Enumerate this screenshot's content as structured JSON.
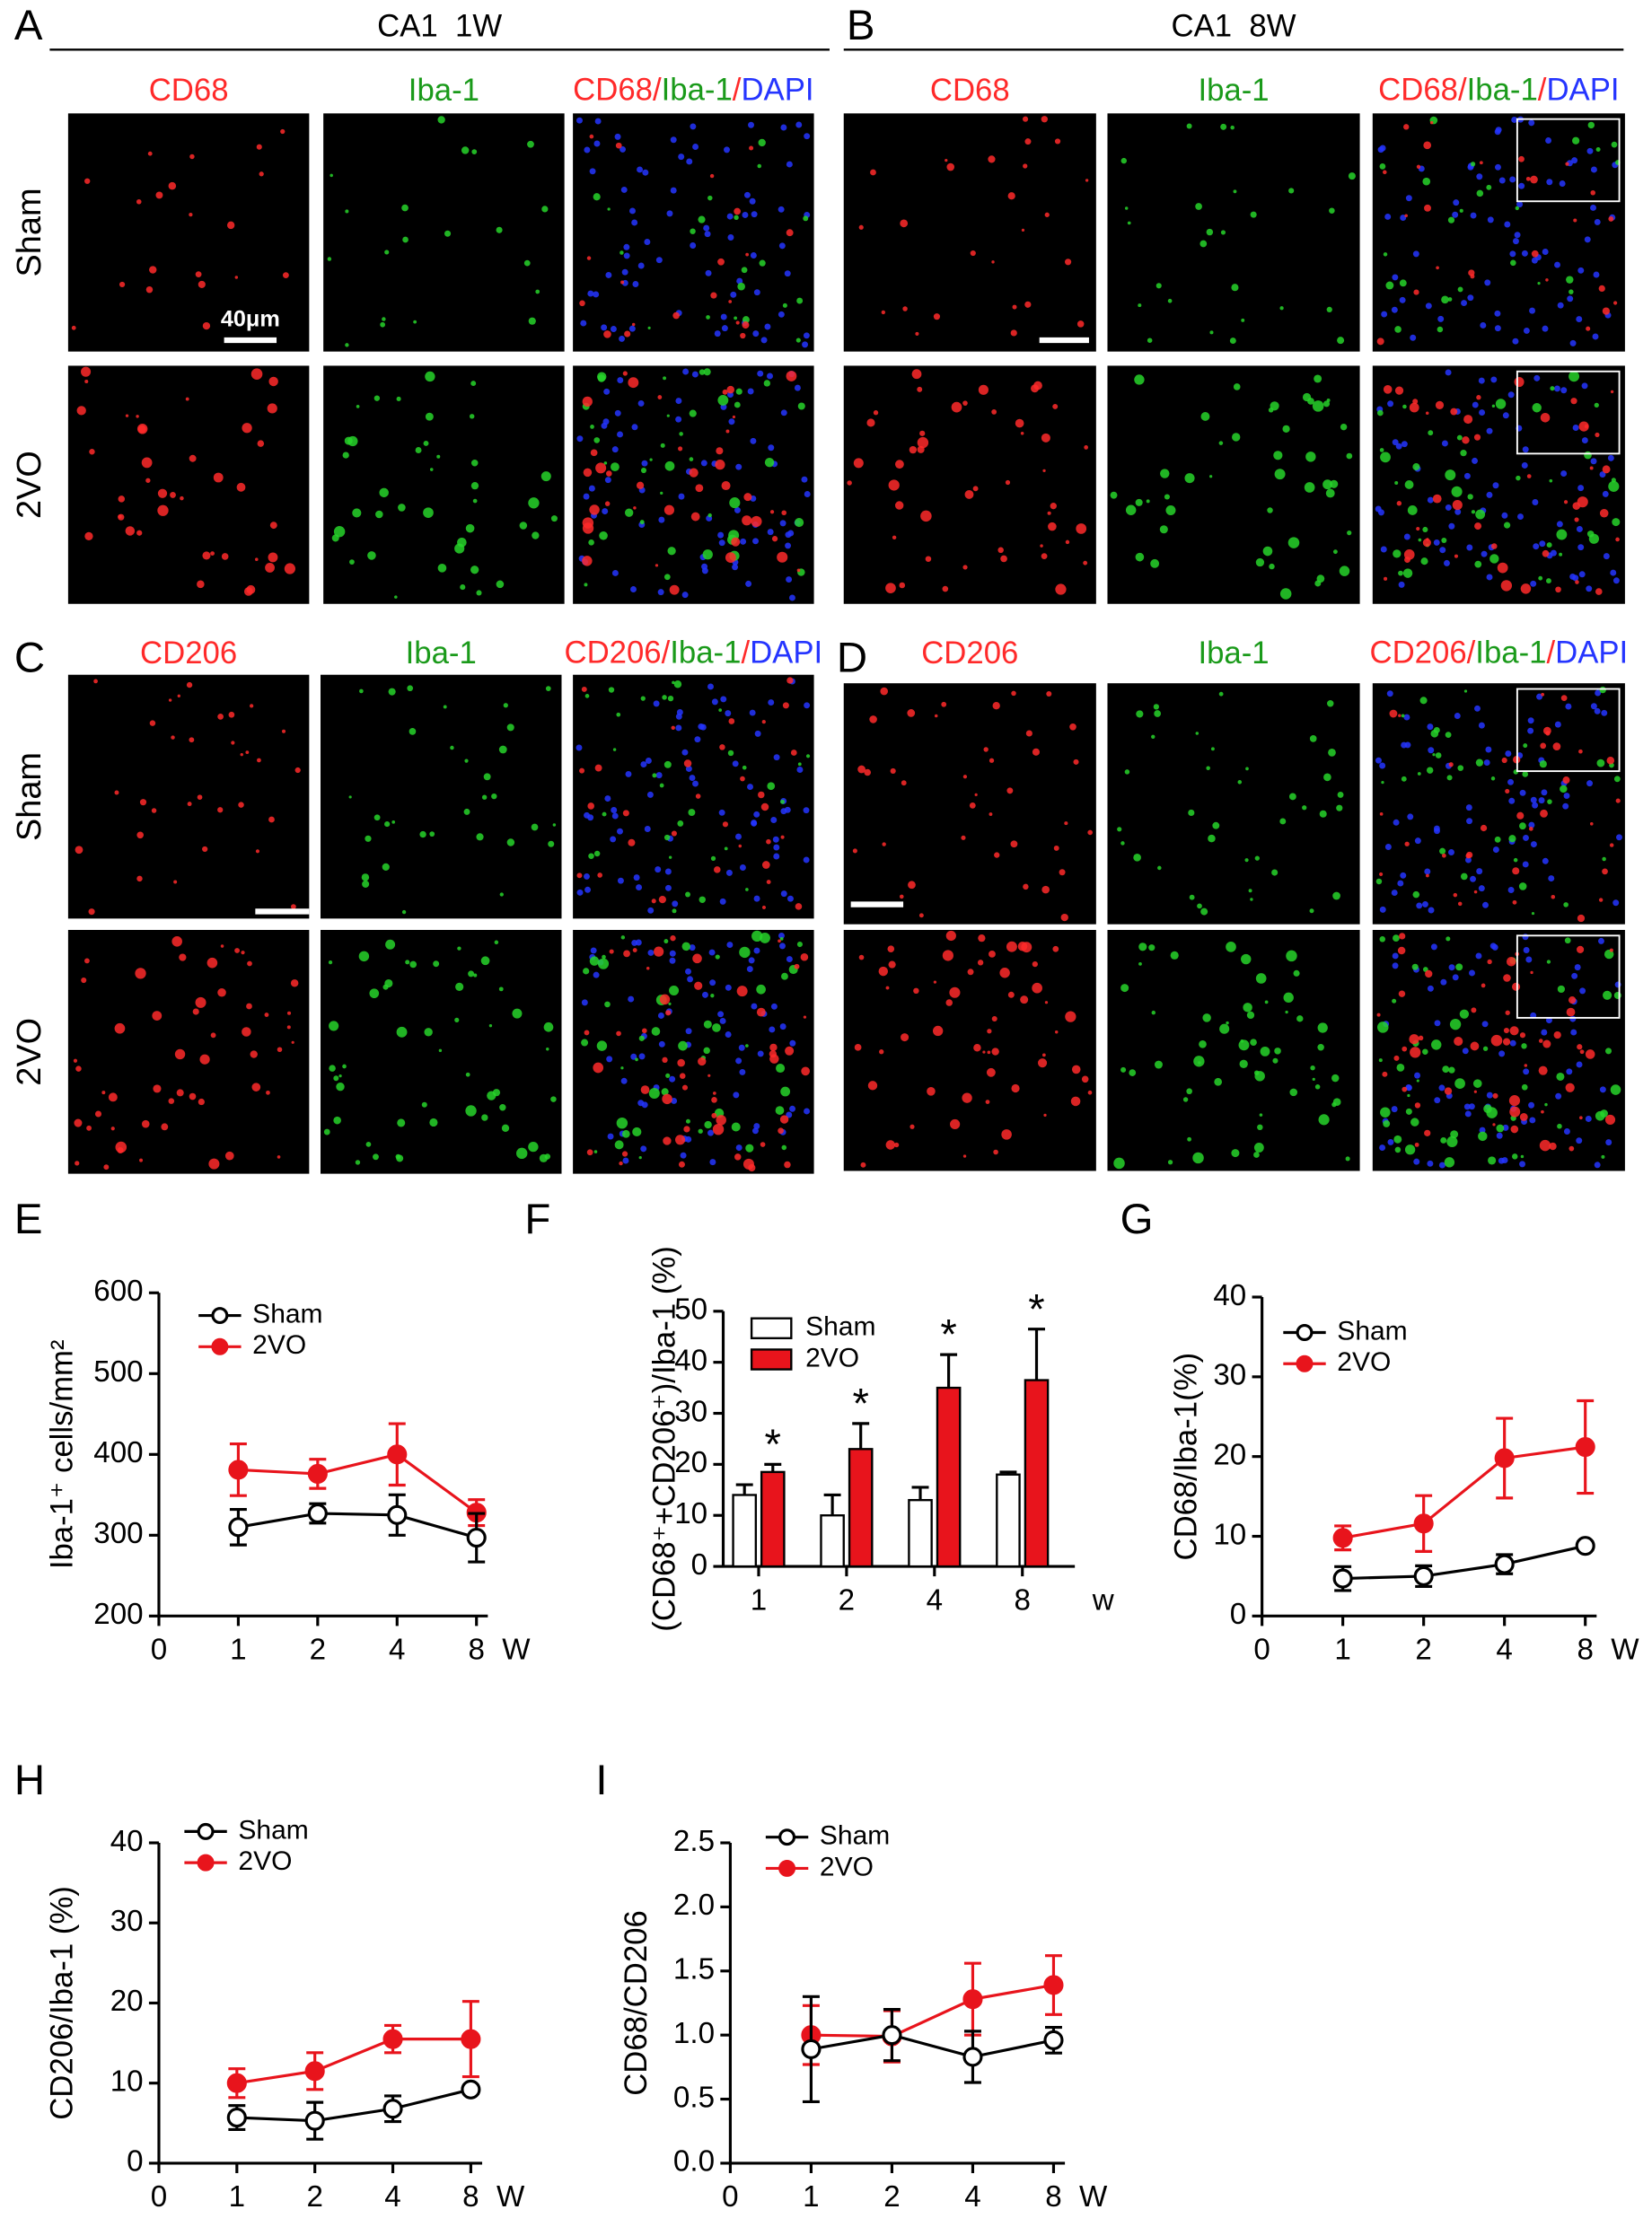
{
  "panels": [
    {
      "letter": "A",
      "header": "CA1  1W",
      "columns": [
        "CD68",
        "Iba-1"
      ],
      "merge": [
        "CD68/",
        "Iba-1",
        "/",
        "DAPI"
      ],
      "rows": [
        "Sham",
        "2VO"
      ],
      "scale_label": "40μm"
    },
    {
      "letter": "B",
      "header": "CA1  8W",
      "columns": [
        "CD68",
        "Iba-1"
      ],
      "merge": [
        "CD68/",
        "Iba-1",
        "/",
        "DAPI"
      ]
    },
    {
      "letter": "C",
      "columns": [
        "CD206",
        "Iba-1"
      ],
      "merge": [
        "CD206/",
        "Iba-1",
        "/",
        "DAPI"
      ],
      "rows": [
        "Sham",
        "2VO"
      ]
    },
    {
      "letter": "D",
      "columns": [
        "CD206",
        "Iba-1"
      ],
      "merge": [
        "CD206/",
        "Iba-1",
        "/",
        "DAPI"
      ]
    }
  ],
  "chart_data": [
    {
      "type": "line",
      "panel_label": "E",
      "y_label": "Iba-1⁺ cells/mm²",
      "x_label": "W",
      "categories": [
        "0",
        "1",
        "2",
        "4",
        "8"
      ],
      "ylim": [
        200,
        600
      ],
      "yticks": [
        200,
        300,
        400,
        500,
        600
      ],
      "series": [
        {
          "name": "Sham",
          "color": "#000000",
          "values": [
            null,
            310,
            327,
            325,
            297
          ],
          "errors": [
            null,
            22,
            12,
            25,
            30
          ]
        },
        {
          "name": "2VO",
          "color": "#e8141c",
          "values": [
            null,
            381,
            376,
            400,
            328
          ],
          "errors": [
            null,
            32,
            18,
            38,
            16
          ]
        }
      ]
    },
    {
      "type": "bar",
      "panel_label": "F",
      "y_label": "(CD68⁺+CD206⁺)/Iba-1 (%)",
      "x_label": "w",
      "categories": [
        "1",
        "2",
        "4",
        "8"
      ],
      "ylim": [
        0,
        50
      ],
      "yticks": [
        0,
        10,
        20,
        30,
        40,
        50
      ],
      "annotations": [
        "*",
        "*",
        "*",
        "*"
      ],
      "series": [
        {
          "name": "Sham",
          "color": "#ffffff",
          "values": [
            14,
            10,
            13,
            18
          ],
          "errors": [
            2,
            4,
            2.5,
            0.5
          ]
        },
        {
          "name": "2VO",
          "color": "#e8141c",
          "values": [
            18.5,
            23,
            35,
            36.5
          ],
          "errors": [
            1.5,
            5,
            6.5,
            10
          ]
        }
      ]
    },
    {
      "type": "line",
      "panel_label": "G",
      "y_label": "CD68/Iba-1(%)",
      "x_label": "W",
      "categories": [
        "0",
        "1",
        "2",
        "4",
        "8"
      ],
      "ylim": [
        0,
        40
      ],
      "yticks": [
        0,
        10,
        20,
        30,
        40
      ],
      "series": [
        {
          "name": "Sham",
          "color": "#000000",
          "values": [
            null,
            4.7,
            5,
            6.5,
            8.8
          ],
          "errors": [
            null,
            1.5,
            1.3,
            1.2,
            0.5
          ]
        },
        {
          "name": "2VO",
          "color": "#e8141c",
          "values": [
            null,
            9.8,
            11.6,
            19.8,
            21.2
          ],
          "errors": [
            null,
            1.5,
            3.5,
            5,
            5.8
          ]
        }
      ]
    },
    {
      "type": "line",
      "panel_label": "H",
      "y_label": "CD206/Iba-1 (%)",
      "x_label": "W",
      "categories": [
        "0",
        "1",
        "2",
        "4",
        "8"
      ],
      "ylim": [
        0,
        40
      ],
      "yticks": [
        0,
        10,
        20,
        30,
        40
      ],
      "series": [
        {
          "name": "Sham",
          "color": "#000000",
          "values": [
            null,
            5.7,
            5.3,
            6.8,
            9.2
          ],
          "errors": [
            null,
            1.5,
            2.3,
            1.6,
            0.5
          ]
        },
        {
          "name": "2VO",
          "color": "#e8141c",
          "values": [
            null,
            10,
            11.5,
            15.5,
            15.5
          ],
          "errors": [
            null,
            1.8,
            2.3,
            1.7,
            4.7
          ]
        }
      ]
    },
    {
      "type": "line",
      "panel_label": "I",
      "y_label": "CD68/CD206",
      "x_label": "W",
      "categories": [
        "0",
        "1",
        "2",
        "4",
        "8"
      ],
      "ylim": [
        0,
        2.5
      ],
      "yticks": [
        {
          "value": 0,
          "label": "0.0"
        },
        0.5,
        {
          "value": 1,
          "label": "1.0"
        },
        1.5,
        {
          "value": 2,
          "label": "2.0"
        },
        2.5
      ],
      "series": [
        {
          "name": "Sham",
          "color": "#000000",
          "values": [
            null,
            0.89,
            1.0,
            0.83,
            0.96
          ],
          "errors": [
            null,
            0.41,
            0.2,
            0.2,
            0.1
          ]
        },
        {
          "name": "2VO",
          "color": "#e8141c",
          "values": [
            null,
            1.0,
            0.99,
            1.28,
            1.39
          ],
          "errors": [
            null,
            0.23,
            0.2,
            0.28,
            0.23
          ]
        }
      ]
    }
  ]
}
